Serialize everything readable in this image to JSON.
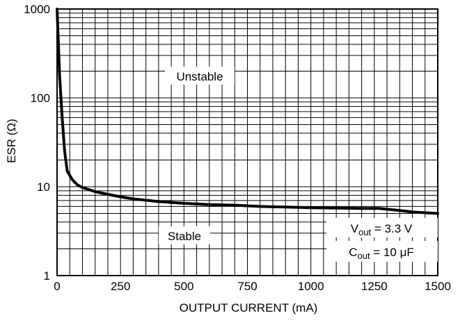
{
  "chart_data": {
    "type": "line",
    "title": "",
    "xlabel": "OUTPUT CURRENT (mA)",
    "ylabel": "ESR (Ω)",
    "x_scale": "linear",
    "y_scale": "log",
    "xlim": [
      0,
      1500
    ],
    "ylim": [
      1,
      1000
    ],
    "x_ticks": [
      0,
      250,
      500,
      750,
      1000,
      1250,
      1500
    ],
    "x_tick_labels": [
      "0",
      "250",
      "500",
      "750",
      "1000",
      "1250",
      "1500"
    ],
    "y_ticks": [
      1,
      10,
      100,
      1000
    ],
    "y_tick_labels": [
      "1",
      "10",
      "100",
      "1000"
    ],
    "grid": true,
    "series": [
      {
        "x": [
          0,
          10,
          20,
          30,
          40,
          60,
          80,
          100,
          150,
          200,
          250,
          300,
          400,
          500,
          600,
          700,
          800,
          900,
          1000,
          1100,
          1200,
          1270,
          1350,
          1400,
          1500
        ],
        "y": [
          1000,
          180,
          60,
          25,
          15,
          12,
          10.5,
          9.8,
          8.8,
          8.2,
          7.7,
          7.3,
          6.8,
          6.5,
          6.3,
          6.2,
          6.0,
          5.9,
          5.8,
          5.75,
          5.7,
          5.7,
          5.4,
          5.2,
          5.0
        ]
      }
    ],
    "annotations": {
      "unstable": "Unstable",
      "stable": "Stable",
      "vout_main": "V",
      "vout_sub": "out",
      "vout_value": " = 3.3 V",
      "cout_main": "C",
      "cout_sub": "out",
      "cout_value": " = 10 μF"
    }
  }
}
